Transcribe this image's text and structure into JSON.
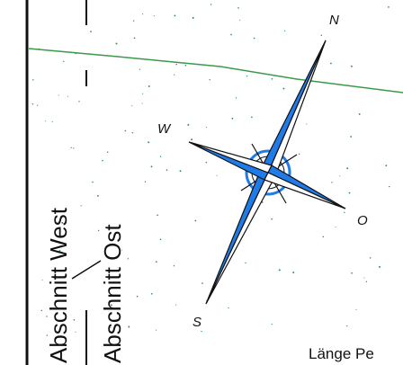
{
  "map": {
    "sections": {
      "west": "Abschnitt West",
      "ost": "Abschnitt Ost"
    },
    "legend_partial": "Länge Pe",
    "compass": {
      "north": "N",
      "west": "W",
      "east": "O",
      "south": "S"
    },
    "colors": {
      "background": "#ffffff",
      "frame_line": "#111111",
      "boundary_line": "#3a9a4a",
      "compass_blue": "#1e7be8",
      "compass_outline": "#111111",
      "speckle": "#2e8b6a"
    }
  }
}
